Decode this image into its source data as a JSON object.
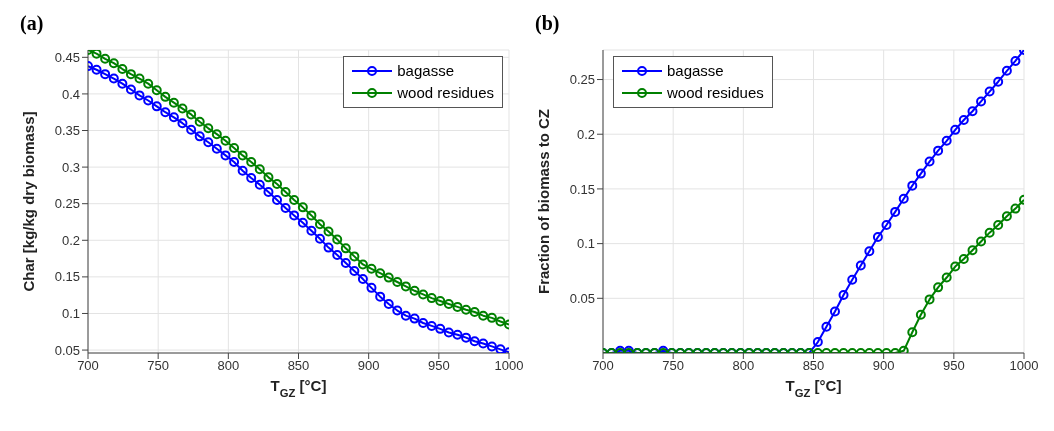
{
  "chart_data": [
    {
      "type": "line",
      "title": "(a)",
      "xlabel": "T$_{GZ}$ [°C]",
      "ylabel": "Char [kg/kg dry biomass]",
      "x": [
        700,
        706.1,
        712.2,
        718.4,
        724.5,
        730.6,
        736.7,
        742.9,
        749.0,
        755.1,
        761.2,
        767.3,
        773.5,
        779.6,
        785.7,
        791.8,
        798.0,
        804.1,
        810.2,
        816.3,
        822.4,
        828.6,
        834.7,
        840.8,
        846.9,
        853.1,
        859.2,
        865.3,
        871.4,
        877.6,
        883.7,
        889.8,
        895.9,
        902.0,
        908.2,
        914.3,
        920.4,
        926.5,
        932.7,
        938.8,
        944.9,
        951.0,
        957.1,
        963.3,
        969.4,
        975.5,
        981.6,
        987.8,
        993.9,
        1000
      ],
      "series": [
        {
          "name": "bagasse",
          "color": "#0000ff",
          "values": [
            0.438,
            0.433,
            0.427,
            0.421,
            0.414,
            0.406,
            0.398,
            0.391,
            0.383,
            0.375,
            0.368,
            0.36,
            0.351,
            0.342,
            0.334,
            0.325,
            0.316,
            0.307,
            0.295,
            0.285,
            0.276,
            0.266,
            0.255,
            0.244,
            0.234,
            0.224,
            0.213,
            0.202,
            0.19,
            0.18,
            0.169,
            0.158,
            0.147,
            0.135,
            0.123,
            0.113,
            0.104,
            0.097,
            0.093,
            0.087,
            0.083,
            0.079,
            0.074,
            0.071,
            0.067,
            0.062,
            0.059,
            0.055,
            0.051,
            0.047
          ]
        },
        {
          "name": "wood residues",
          "color": "#008000",
          "values": [
            0.46,
            0.455,
            0.448,
            0.442,
            0.434,
            0.427,
            0.421,
            0.414,
            0.405,
            0.396,
            0.388,
            0.38,
            0.372,
            0.362,
            0.353,
            0.345,
            0.336,
            0.326,
            0.316,
            0.307,
            0.297,
            0.286,
            0.277,
            0.266,
            0.255,
            0.245,
            0.234,
            0.222,
            0.212,
            0.201,
            0.189,
            0.178,
            0.167,
            0.161,
            0.155,
            0.149,
            0.143,
            0.137,
            0.131,
            0.126,
            0.121,
            0.117,
            0.113,
            0.109,
            0.105,
            0.102,
            0.097,
            0.094,
            0.089,
            0.085
          ]
        }
      ],
      "xlim": [
        700,
        1000
      ],
      "xticks": [
        700,
        750,
        800,
        850,
        900,
        950,
        1000
      ],
      "ylim": [
        0.046,
        0.46
      ],
      "yticks": [
        0.05,
        0.1,
        0.15,
        0.2,
        0.25,
        0.3,
        0.35,
        0.4,
        0.45
      ],
      "grid": true,
      "legend": "top right",
      "marker": "circle",
      "line_style": "solid"
    },
    {
      "type": "line",
      "title": "(b)",
      "xlabel": "T$_{GZ}$ [°C]",
      "ylabel": "Fraction of biomass to CZ",
      "x": [
        700,
        706.1,
        712.2,
        718.4,
        724.5,
        730.6,
        736.7,
        742.9,
        749.0,
        755.1,
        761.2,
        767.3,
        773.5,
        779.6,
        785.7,
        791.8,
        798.0,
        804.1,
        810.2,
        816.3,
        822.4,
        828.6,
        834.7,
        840.8,
        846.9,
        853.1,
        859.2,
        865.3,
        871.4,
        877.6,
        883.7,
        889.8,
        895.9,
        902.0,
        908.2,
        914.3,
        920.4,
        926.5,
        932.7,
        938.8,
        944.9,
        951.0,
        957.1,
        963.3,
        969.4,
        975.5,
        981.6,
        987.8,
        993.9,
        1000
      ],
      "series": [
        {
          "name": "bagasse",
          "color": "#0000ff",
          "values": [
            0,
            0,
            0.002,
            0.002,
            0,
            0,
            0,
            0.002,
            0,
            0,
            0,
            0,
            0,
            0,
            0,
            0,
            0,
            0,
            0,
            0,
            0,
            0,
            0,
            0,
            0,
            0.01,
            0.024,
            0.038,
            0.053,
            0.067,
            0.08,
            0.093,
            0.106,
            0.117,
            0.129,
            0.141,
            0.153,
            0.164,
            0.175,
            0.185,
            0.194,
            0.204,
            0.213,
            0.221,
            0.23,
            0.239,
            0.248,
            0.258,
            0.267,
            0.277
          ]
        },
        {
          "name": "wood residues",
          "color": "#008000",
          "values": [
            0,
            0,
            0,
            0,
            0,
            0,
            0,
            0,
            0,
            0,
            0,
            0,
            0,
            0,
            0,
            0,
            0,
            0,
            0,
            0,
            0,
            0,
            0,
            0,
            0,
            0,
            0,
            0,
            0,
            0,
            0,
            0,
            0,
            0,
            0,
            0.002,
            0.019,
            0.035,
            0.049,
            0.06,
            0.069,
            0.079,
            0.086,
            0.094,
            0.102,
            0.11,
            0.117,
            0.125,
            0.132,
            0.14
          ]
        }
      ],
      "xlim": [
        700,
        1000
      ],
      "xticks": [
        700,
        750,
        800,
        850,
        900,
        950,
        1000
      ],
      "ylim": [
        0,
        0.277
      ],
      "yticks": [
        0.05,
        0.1,
        0.15,
        0.2,
        0.25
      ],
      "grid": true,
      "legend": "top left",
      "marker": "circle",
      "line_style": "solid"
    }
  ]
}
